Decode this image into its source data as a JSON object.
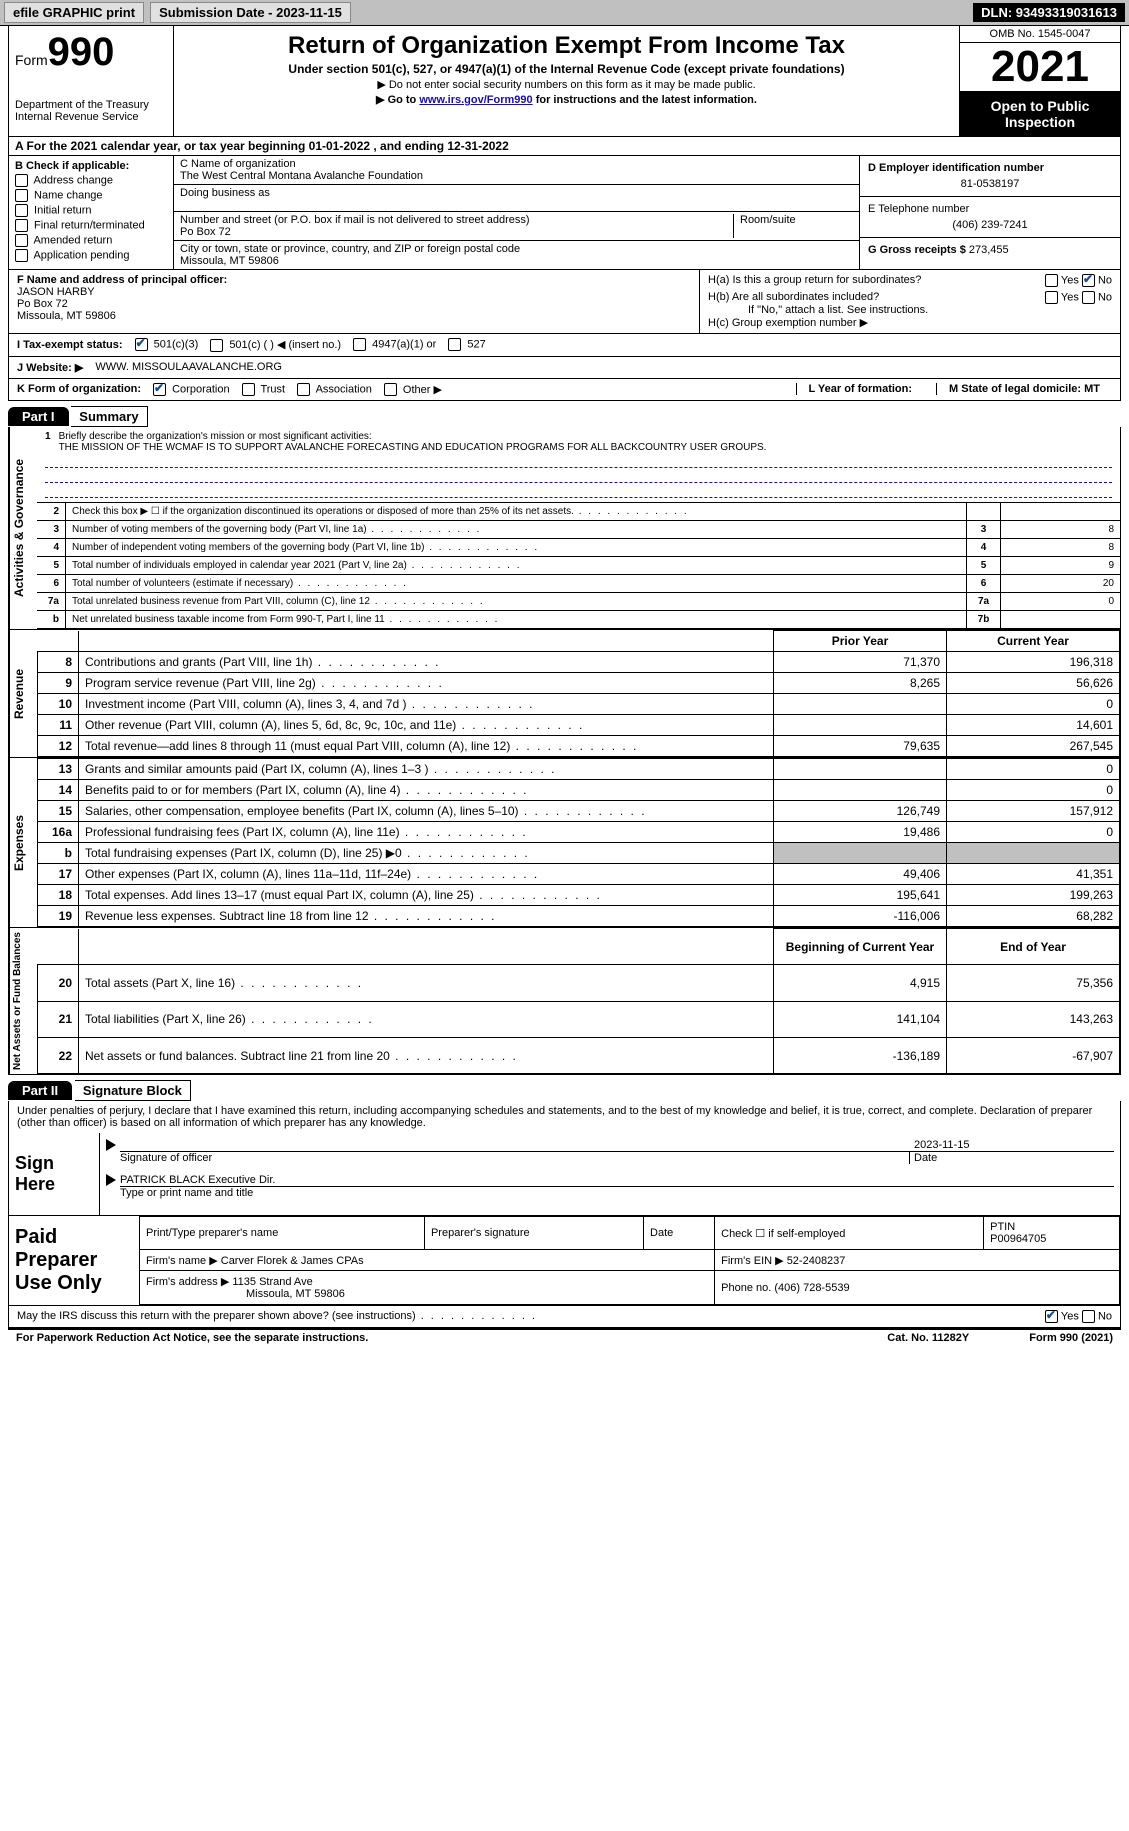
{
  "topbar": {
    "efile": "efile GRAPHIC print",
    "submission": "Submission Date - 2023-11-15",
    "dln": "DLN: 93493319031613"
  },
  "header": {
    "form_label": "Form",
    "form_no": "990",
    "dept": "Department of the Treasury",
    "irs": "Internal Revenue Service",
    "title": "Return of Organization Exempt From Income Tax",
    "sub": "Under section 501(c), 527, or 4947(a)(1) of the Internal Revenue Code (except private foundations)",
    "note1": "▶ Do not enter social security numbers on this form as it may be made public.",
    "note2_pre": "▶ Go to ",
    "note2_link": "www.irs.gov/Form990",
    "note2_post": " for instructions and the latest information.",
    "omb": "OMB No. 1545-0047",
    "year": "2021",
    "inspect": "Open to Public Inspection"
  },
  "line_a": "A For the 2021 calendar year, or tax year beginning 01-01-2022   , and ending 12-31-2022",
  "section_b": {
    "label": "B Check if applicable:",
    "items": [
      "Address change",
      "Name change",
      "Initial return",
      "Final return/terminated",
      "Amended return",
      "Application pending"
    ]
  },
  "section_c": {
    "name_label": "C Name of organization",
    "name": "The West Central Montana Avalanche Foundation",
    "dba_label": "Doing business as",
    "addr_label": "Number and street (or P.O. box if mail is not delivered to street address)",
    "room_label": "Room/suite",
    "addr": "Po Box 72",
    "city_label": "City or town, state or province, country, and ZIP or foreign postal code",
    "city": "Missoula, MT  59806"
  },
  "section_d": {
    "ein_label": "D Employer identification number",
    "ein": "81-0538197",
    "tel_label": "E Telephone number",
    "tel": "(406) 239-7241",
    "gross_label": "G Gross receipts $",
    "gross": "273,455"
  },
  "section_f": {
    "label": "F Name and address of principal officer:",
    "name": "JASON HARBY",
    "addr1": "Po Box 72",
    "addr2": "Missoula, MT  59806"
  },
  "section_h": {
    "a": "H(a)  Is this a group return for subordinates?",
    "b": "H(b)  Are all subordinates included?",
    "b_note": "If \"No,\" attach a list. See instructions.",
    "c": "H(c)  Group exemption number ▶"
  },
  "line_i": {
    "label": "I  Tax-exempt status:",
    "opts": [
      "501(c)(3)",
      "501(c) (  ) ◀ (insert no.)",
      "4947(a)(1) or",
      "527"
    ]
  },
  "line_j": {
    "label": "J  Website: ▶",
    "val": "WWW. MISSOULAAVALANCHE.ORG"
  },
  "line_k": {
    "label": "K Form of organization:",
    "opts": [
      "Corporation",
      "Trust",
      "Association",
      "Other ▶"
    ],
    "l": "L Year of formation:",
    "m": "M State of legal domicile: MT"
  },
  "part1": {
    "tag": "Part I",
    "title": "Summary"
  },
  "briefly": {
    "n": "1",
    "label": "Briefly describe the organization's mission or most significant activities:",
    "text": "THE MISSION OF THE WCMAF IS TO SUPPORT AVALANCHE FORECASTING AND EDUCATION PROGRAMS FOR ALL BACKCOUNTRY USER GROUPS."
  },
  "activities": {
    "side": "Activities & Governance",
    "rows": [
      {
        "n": "2",
        "d": "Check this box ▶ ☐ if the organization discontinued its operations or disposed of more than 25% of its net assets.",
        "rn": "",
        "rv": ""
      },
      {
        "n": "3",
        "d": "Number of voting members of the governing body (Part VI, line 1a)",
        "rn": "3",
        "rv": "8"
      },
      {
        "n": "4",
        "d": "Number of independent voting members of the governing body (Part VI, line 1b)",
        "rn": "4",
        "rv": "8"
      },
      {
        "n": "5",
        "d": "Total number of individuals employed in calendar year 2021 (Part V, line 2a)",
        "rn": "5",
        "rv": "9"
      },
      {
        "n": "6",
        "d": "Total number of volunteers (estimate if necessary)",
        "rn": "6",
        "rv": "20"
      },
      {
        "n": "7a",
        "d": "Total unrelated business revenue from Part VIII, column (C), line 12",
        "rn": "7a",
        "rv": "0"
      },
      {
        "n": "b",
        "d": "Net unrelated business taxable income from Form 990-T, Part I, line 11",
        "rn": "7b",
        "rv": ""
      }
    ]
  },
  "fin_hdr": {
    "prior": "Prior Year",
    "current": "Current Year"
  },
  "revenue": {
    "side": "Revenue",
    "rows": [
      {
        "n": "8",
        "d": "Contributions and grants (Part VIII, line 1h)",
        "p": "71,370",
        "c": "196,318"
      },
      {
        "n": "9",
        "d": "Program service revenue (Part VIII, line 2g)",
        "p": "8,265",
        "c": "56,626"
      },
      {
        "n": "10",
        "d": "Investment income (Part VIII, column (A), lines 3, 4, and 7d )",
        "p": "",
        "c": "0"
      },
      {
        "n": "11",
        "d": "Other revenue (Part VIII, column (A), lines 5, 6d, 8c, 9c, 10c, and 11e)",
        "p": "",
        "c": "14,601"
      },
      {
        "n": "12",
        "d": "Total revenue—add lines 8 through 11 (must equal Part VIII, column (A), line 12)",
        "p": "79,635",
        "c": "267,545"
      }
    ]
  },
  "expenses": {
    "side": "Expenses",
    "rows": [
      {
        "n": "13",
        "d": "Grants and similar amounts paid (Part IX, column (A), lines 1–3 )",
        "p": "",
        "c": "0"
      },
      {
        "n": "14",
        "d": "Benefits paid to or for members (Part IX, column (A), line 4)",
        "p": "",
        "c": "0"
      },
      {
        "n": "15",
        "d": "Salaries, other compensation, employee benefits (Part IX, column (A), lines 5–10)",
        "p": "126,749",
        "c": "157,912"
      },
      {
        "n": "16a",
        "d": "Professional fundraising fees (Part IX, column (A), line 11e)",
        "p": "19,486",
        "c": "0"
      },
      {
        "n": "b",
        "d": "Total fundraising expenses (Part IX, column (D), line 25) ▶0",
        "p": "shaded",
        "c": "shaded"
      },
      {
        "n": "17",
        "d": "Other expenses (Part IX, column (A), lines 11a–11d, 11f–24e)",
        "p": "49,406",
        "c": "41,351"
      },
      {
        "n": "18",
        "d": "Total expenses. Add lines 13–17 (must equal Part IX, column (A), line 25)",
        "p": "195,641",
        "c": "199,263"
      },
      {
        "n": "19",
        "d": "Revenue less expenses. Subtract line 18 from line 12",
        "p": "-116,006",
        "c": "68,282"
      }
    ]
  },
  "net_hdr": {
    "begin": "Beginning of Current Year",
    "end": "End of Year"
  },
  "netassets": {
    "side": "Net Assets or Fund Balances",
    "rows": [
      {
        "n": "20",
        "d": "Total assets (Part X, line 16)",
        "p": "4,915",
        "c": "75,356"
      },
      {
        "n": "21",
        "d": "Total liabilities (Part X, line 26)",
        "p": "141,104",
        "c": "143,263"
      },
      {
        "n": "22",
        "d": "Net assets or fund balances. Subtract line 21 from line 20",
        "p": "-136,189",
        "c": "-67,907"
      }
    ]
  },
  "part2": {
    "tag": "Part II",
    "title": "Signature Block"
  },
  "sig": {
    "declare": "Under penalties of perjury, I declare that I have examined this return, including accompanying schedules and statements, and to the best of my knowledge and belief, it is true, correct, and complete. Declaration of preparer (other than officer) is based on all information of which preparer has any knowledge.",
    "sign_here": "Sign Here",
    "sig_officer": "Signature of officer",
    "date": "2023-11-15",
    "date_lbl": "Date",
    "name": "PATRICK BLACK  Executive Dir.",
    "name_lbl": "Type or print name and title"
  },
  "paid": {
    "label": "Paid Preparer Use Only",
    "h": [
      "Print/Type preparer's name",
      "Preparer's signature",
      "Date",
      "Check ☐ if self-employed",
      "PTIN"
    ],
    "ptin": "P00964705",
    "firm_lbl": "Firm's name    ▶",
    "firm": "Carver Florek & James CPAs",
    "ein_lbl": "Firm's EIN ▶",
    "ein": "52-2408237",
    "addr_lbl": "Firm's address ▶",
    "addr1": "1135 Strand Ave",
    "addr2": "Missoula, MT  59806",
    "phone_lbl": "Phone no.",
    "phone": "(406) 728-5539"
  },
  "discuss": "May the IRS discuss this return with the preparer shown above? (see instructions)",
  "footer": {
    "left": "For Paperwork Reduction Act Notice, see the separate instructions.",
    "mid": "Cat. No. 11282Y",
    "right": "Form 990 (2021)"
  }
}
